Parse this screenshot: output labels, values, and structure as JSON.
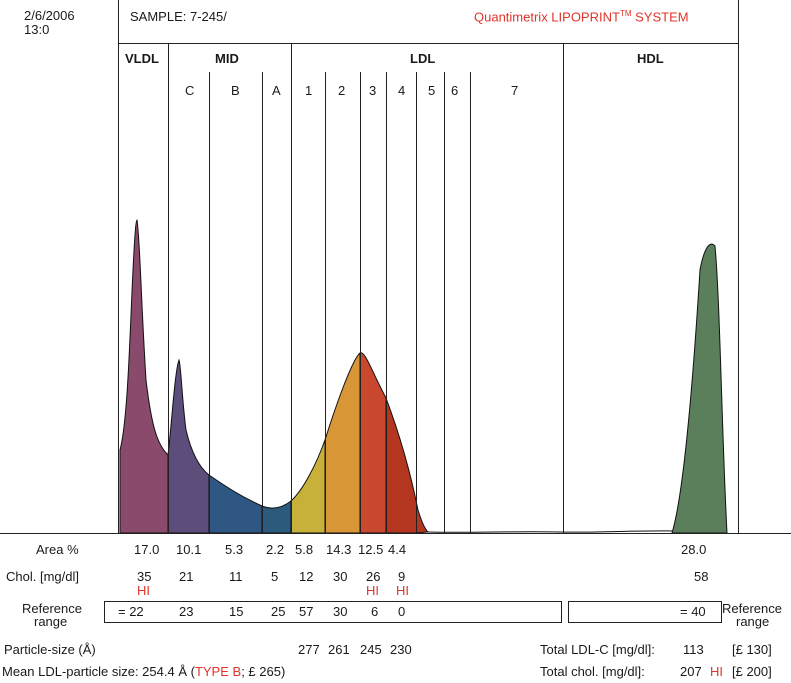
{
  "header": {
    "date": "2/6/2006",
    "time": "13:0",
    "sample": "SAMPLE:  7-245/",
    "brand_prefix": "Quantimetrix LIPOPRINT",
    "brand_tm": "TM",
    "brand_suffix": " SYSTEM"
  },
  "groups": {
    "vldl": "VLDL",
    "mid": "MID",
    "ldl": "LDL",
    "hdl": "HDL"
  },
  "subfractions": {
    "mid": [
      "C",
      "B",
      "A"
    ],
    "ldl": [
      "1",
      "2",
      "3",
      "4",
      "5",
      "6",
      "7"
    ]
  },
  "rows": {
    "area_label": "Area %",
    "area_values": [
      "17.0",
      "10.1",
      "5.3",
      "2.2",
      "5.8",
      "14.3",
      "12.5",
      "4.4"
    ],
    "area_hdl": "28.0",
    "chol_label": "Chol. [mg/dl]",
    "chol_values": [
      "35",
      "21",
      "11",
      "5",
      "12",
      "30",
      "26",
      "9"
    ],
    "chol_hdl": "58",
    "hi_flag": "HI",
    "ref_label_1": "Reference",
    "ref_label_2": "range",
    "ref_values": [
      "= 22",
      "23",
      "15",
      "25",
      "57",
      "30",
      "6",
      "0"
    ],
    "ref_hdl": "= 40",
    "ref_right_1": "Reference",
    "ref_right_2": "range",
    "particle_label": "Particle-size (Å)",
    "particle_values": [
      "277",
      "261",
      "245",
      "230"
    ]
  },
  "summary": {
    "total_ldlc_label": "Total LDL-C [mg/dl]:",
    "total_ldlc_value": "113",
    "total_ldlc_ref": "[£ 130]",
    "total_chol_label": "Total chol. [mg/dl]:",
    "total_chol_value": "207",
    "total_chol_flag": "HI",
    "total_chol_ref": "[£ 200]",
    "mean_prefix": "Mean LDL-particle size: 254.4 Å (",
    "mean_type": "TYPE B",
    "mean_suffix": "; £ 265)"
  },
  "colors": {
    "vldl": "#8a4a6b",
    "mid_c": "#5d4d7a",
    "mid_b": "#2f5784",
    "mid_a": "#2c5a7d",
    "ldl1": "#c7b13a",
    "ldl2": "#d99636",
    "ldl3": "#c9482e",
    "ldl4": "#b43520",
    "hdl": "#5a7f5a",
    "flag_red": "#e0342a"
  }
}
